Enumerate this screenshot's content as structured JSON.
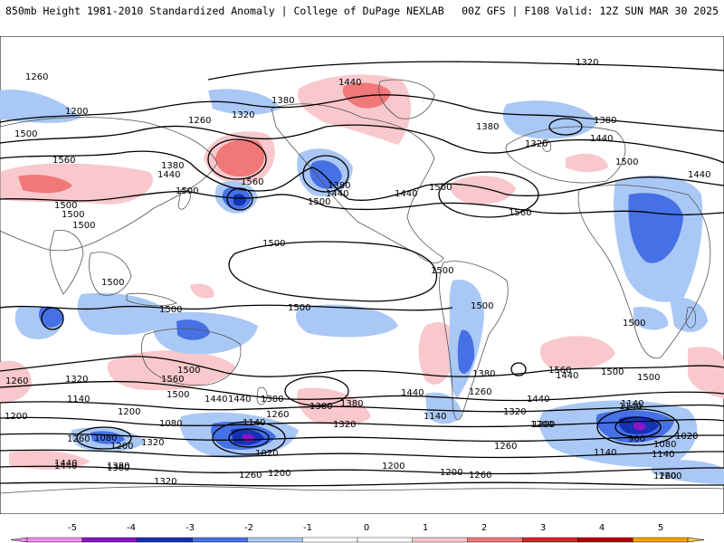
{
  "header": {
    "title": "850mb Height 1981-2010 Standardized Anomaly | College of DuPage NEXLAB",
    "valid": "00Z GFS | F108 Valid: 12Z SUN MAR 30 2025"
  },
  "colors": {
    "neg5": "#f08cf0",
    "neg4": "#8a14c8",
    "neg3": "#1432b4",
    "neg2": "#4670e6",
    "neg1": "#aac8f5",
    "neutral": "#ffffff",
    "pos1": "#f8c8cc",
    "pos2": "#f07878",
    "pos3": "#d22828",
    "pos4": "#b40000",
    "pos5": "#f5a000",
    "pos5b": "#f8c850",
    "contour": "#000000",
    "coast": "#555555"
  },
  "colorbar": {
    "ticks": [
      "-5",
      "-4",
      "-3",
      "-2",
      "-1",
      "0",
      "1",
      "2",
      "3",
      "4",
      "5"
    ]
  },
  "contour_labels": [
    {
      "t": "1260"
    },
    {
      "t": "1200"
    },
    {
      "t": "1260"
    },
    {
      "t": "1320"
    },
    {
      "t": "1380"
    },
    {
      "t": "1440"
    },
    {
      "t": "1320"
    },
    {
      "t": "1380"
    },
    {
      "t": "1320"
    },
    {
      "t": "1440"
    },
    {
      "t": "1380"
    },
    {
      "t": "1500"
    },
    {
      "t": "1560"
    },
    {
      "t": "1440"
    },
    {
      "t": "1380"
    },
    {
      "t": "1500"
    },
    {
      "t": "1500"
    },
    {
      "t": "1440"
    },
    {
      "t": "1560"
    },
    {
      "t": "1500"
    },
    {
      "t": "1380"
    },
    {
      "t": "1440"
    },
    {
      "t": "1500"
    },
    {
      "t": "1500"
    },
    {
      "t": "1560"
    },
    {
      "t": "1500"
    },
    {
      "t": "1500"
    },
    {
      "t": "1440"
    },
    {
      "t": "1500"
    },
    {
      "t": "1500"
    },
    {
      "t": "1500"
    },
    {
      "t": "1500"
    },
    {
      "t": "1500"
    },
    {
      "t": "1500"
    },
    {
      "t": "1500"
    },
    {
      "t": "1560"
    },
    {
      "t": "1380"
    },
    {
      "t": "1260"
    },
    {
      "t": "1500"
    },
    {
      "t": "1560"
    },
    {
      "t": "1500"
    },
    {
      "t": "1440"
    },
    {
      "t": "1320"
    },
    {
      "t": "1140"
    },
    {
      "t": "1200"
    },
    {
      "t": "1440"
    },
    {
      "t": "1380"
    },
    {
      "t": "1380"
    },
    {
      "t": "1320"
    },
    {
      "t": "1260"
    },
    {
      "t": "1140"
    },
    {
      "t": "1200"
    },
    {
      "t": "1080"
    },
    {
      "t": "1140"
    },
    {
      "t": "1020"
    },
    {
      "t": "1080"
    },
    {
      "t": "1200"
    },
    {
      "t": "1260"
    },
    {
      "t": "1320"
    },
    {
      "t": "1380"
    },
    {
      "t": "1440"
    },
    {
      "t": "1140"
    },
    {
      "t": "1200"
    },
    {
      "t": "1320"
    },
    {
      "t": "1440"
    },
    {
      "t": "1140"
    },
    {
      "t": "960"
    },
    {
      "t": "1080"
    },
    {
      "t": "1020"
    },
    {
      "t": "1140"
    },
    {
      "t": "1200"
    },
    {
      "t": "1260"
    },
    {
      "t": "1200"
    },
    {
      "t": "1260"
    },
    {
      "t": "1200"
    },
    {
      "t": "1200"
    },
    {
      "t": "1260"
    },
    {
      "t": "1320"
    },
    {
      "t": "1260"
    },
    {
      "t": "1440"
    },
    {
      "t": "1380"
    },
    {
      "t": "1380"
    },
    {
      "t": "1440"
    },
    {
      "t": "1140"
    },
    {
      "t": "1260"
    },
    {
      "t": "1200"
    },
    {
      "t": "1500"
    },
    {
      "t": "1440"
    },
    {
      "t": "1500"
    }
  ]
}
